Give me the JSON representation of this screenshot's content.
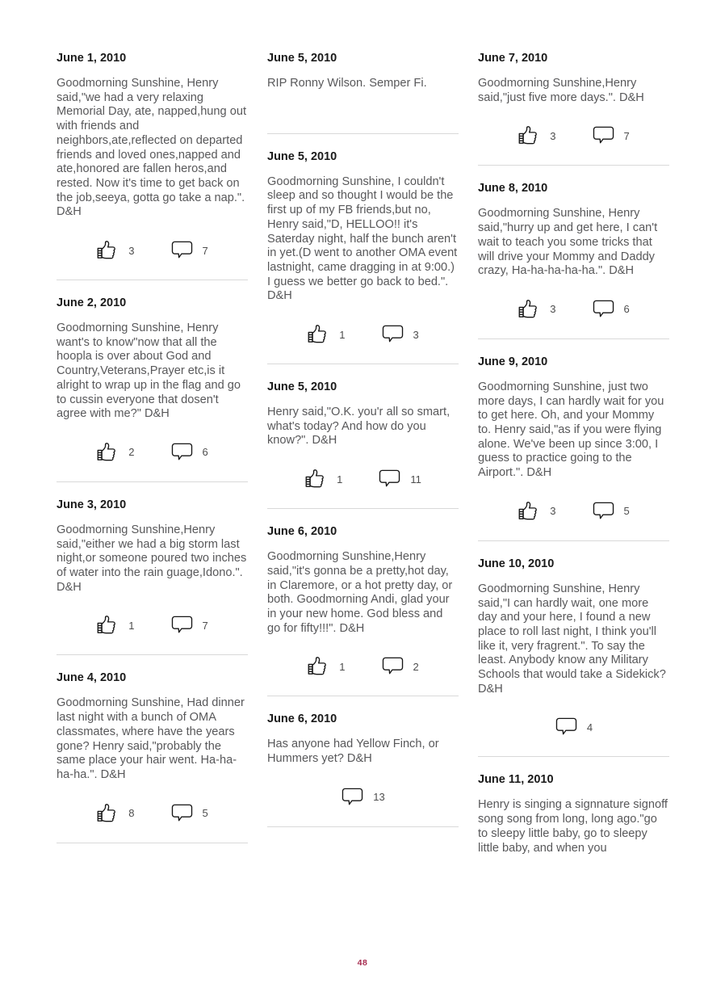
{
  "page": {
    "number": "48",
    "accent_color": "#A62B4F",
    "background_color": "#FFFFFF",
    "heading_color": "#1A1A1A",
    "body_text_color": "#58585A",
    "divider_color": "#D9D9D9"
  },
  "icons": {
    "like": "thumbs-up-icon",
    "comment": "comment-bubble-icon"
  },
  "columns": [
    {
      "posts": [
        {
          "date": "June 1, 2010",
          "body": "Goodmorning Sunshine, Henry said,\"we had a very relaxing Memorial Day, ate, napped,hung out with friends and neighbors,ate,reflected on departed friends and loved ones,napped and ate,honored are fallen heros,and rested. Now it's time to get back on the job,seeya, gotta go take a nap.\". D&H",
          "likes": "3",
          "comments": "7"
        },
        {
          "date": "June 2, 2010",
          "body": "Goodmorning Sunshine, Henry want's to know\"now that all the hoopla is over about God and Country,Veterans,Prayer etc,is it alright to wrap up in the flag and go to cussin everyone that dosen't agree with me?\" D&H",
          "likes": "2",
          "comments": "6"
        },
        {
          "date": "June 3, 2010",
          "body": "Goodmorning Sunshine,Henry said,\"either we had a big storm last night,or someone poured two inches of water into the rain guage,Idono.\". D&H",
          "likes": "1",
          "comments": "7"
        },
        {
          "date": "June 4, 2010",
          "body": "Goodmorning Sunshine, Had dinner last night with a bunch of OMA classmates, where have the years gone? Henry said,\"probably the same place your hair went. Ha-ha-ha-ha.\". D&H",
          "likes": "8",
          "comments": "5"
        }
      ]
    },
    {
      "posts": [
        {
          "date": "June 5, 2010",
          "body": "RIP Ronny Wilson. Semper Fi."
        },
        {
          "date": "June 5, 2010",
          "body": "Goodmorning Sunshine, I couldn't sleep and so thought I would be the first up of my FB friends,but no, Henry said,\"D, HELLOO!! it's Saterday night, half the bunch aren't in yet.(D went to another OMA event lastnight, came dragging in at 9:00.) I guess we better go back to bed.\". D&H",
          "likes": "1",
          "comments": "3"
        },
        {
          "date": "June 5, 2010",
          "body": "Henry said,\"O.K. you'r all so smart, what's today? And how do you know?\". D&H",
          "likes": "1",
          "comments": "11"
        },
        {
          "date": "June 6, 2010",
          "body": "Goodmorning Sunshine,Henry said,\"it's gonna be a pretty,hot day, in Claremore, or a hot pretty day, or both. Goodmorning Andi, glad your in your new home. God bless and go for fifty!!!\". D&H",
          "likes": "1",
          "comments": "2"
        },
        {
          "date": "June 6, 2010",
          "body": "Has anyone had Yellow Finch, or Hummers yet? D&H",
          "comments": "13"
        }
      ]
    },
    {
      "posts": [
        {
          "date": "June 7, 2010",
          "body": "Goodmorning Sunshine,Henry said,\"just five more days.\". D&H",
          "likes": "3",
          "comments": "7"
        },
        {
          "date": "June 8, 2010",
          "body": "Goodmorning Sunshine, Henry said,\"hurry up and get here, I can't wait to teach you some tricks that will drive your Mommy and Daddy crazy, Ha-ha-ha-ha-ha.\". D&H",
          "likes": "3",
          "comments": "6"
        },
        {
          "date": "June 9, 2010",
          "body": "Goodmorning Sunshine, just two more days, I can hardly wait for you to get here. Oh, and your Mommy to. Henry said,\"as if you were flying alone. We've been up since 3:00, I guess to practice going to the Airport.\". D&H",
          "likes": "3",
          "comments": "5"
        },
        {
          "date": "June 10, 2010",
          "body": "Goodmorning Sunshine, Henry said,\"I can hardly wait, one more day and your here, I found a new place to roll last night, I think you'll like it, very fragrent.\". To say the least. Anybody know any Military Schools that would take a Sidekick? D&H",
          "comments": "4"
        },
        {
          "date": "June 11, 2010",
          "body": "Henry is singing a signnature signoff song song from long, long ago.\"go to sleepy little baby, go to sleepy little baby, and when you",
          "divider": false
        }
      ]
    }
  ]
}
